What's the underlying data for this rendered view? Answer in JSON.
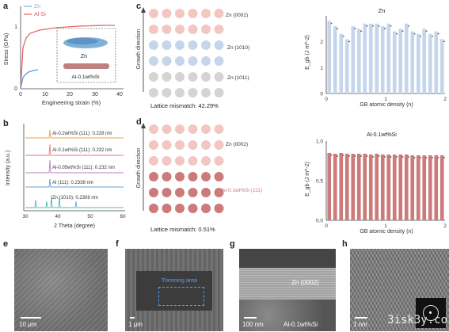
{
  "panel_letters": [
    "a",
    "b",
    "c",
    "d",
    "e",
    "f",
    "g",
    "h"
  ],
  "panel_a": {
    "legend": [
      "Zn",
      "Al-Si"
    ],
    "ylabel": "Stress (GPa)",
    "xlabel": "Engineering strain (%)",
    "yticks": [
      "0",
      "1"
    ],
    "xticks": [
      "0",
      "10",
      "20",
      "30",
      "40"
    ],
    "inset_labels": [
      "Zn",
      "Al-0.1wt%Si"
    ]
  },
  "panel_b": {
    "ylabel": "Intensity (a.u.)",
    "xlabel": "2 Theta (degree)",
    "xticks": [
      "30",
      "40",
      "50",
      "60"
    ],
    "annotations": [
      "Al-0.2wt%Si (111): 0.228 nm",
      "Al-0.1wt%Si (111): 0.232 nm",
      "Al-0.05wt%Si (111): 0.232 nm",
      "Al (111): 0.2338 nm",
      "Zn (1010): 0.2308 nm"
    ]
  },
  "panel_c": {
    "axis_label": "Growth direction",
    "row_labels": [
      "Zn (0002)",
      "Zn (1010)",
      "Zn (1011)"
    ],
    "mismatch": "Lattice mismatch: 42.29%"
  },
  "panel_d": {
    "axis_label": "Growth direction",
    "row_labels": [
      "Zn (0002)",
      "Al-0.1wt%Si (111)"
    ],
    "mismatch": "Lattice mismatch: 0.51%"
  },
  "panel_e": {
    "scale": "10 μm"
  },
  "panel_f": {
    "scale": "1 μm",
    "box_label": "Trimming area"
  },
  "panel_g": {
    "scale": "100 nm",
    "labels": [
      "Zn (0002)",
      "Al-0.1wt%Si"
    ]
  },
  "panel_h": {
    "scale": "1 nm"
  },
  "watermark": "3isk3y.co",
  "colors": {
    "blue": "#c5d6ec",
    "red": "#cc7a7a",
    "pink": "#f2c7c2",
    "grey": "#d4d4d4"
  },
  "chart_data": [
    {
      "type": "bar",
      "title": "Zn",
      "xlabel": "GB atomic density (n)",
      "ylabel": "E_gb (J m^-2)",
      "ylim": [
        0,
        3
      ],
      "yticks": [
        "0",
        "1",
        "2"
      ],
      "xticks": [
        "0",
        "1",
        "2"
      ],
      "xlim": [
        0,
        2
      ],
      "x": [
        0,
        0.1,
        0.2,
        0.3,
        0.4,
        0.5,
        0.6,
        0.7,
        0.8,
        0.9,
        1.0,
        1.1,
        1.2,
        1.3,
        1.4,
        1.5,
        1.6,
        1.7,
        1.8,
        1.9
      ],
      "values": [
        2.8,
        2.6,
        2.3,
        2.1,
        2.6,
        2.5,
        2.7,
        2.7,
        2.7,
        2.6,
        2.7,
        2.4,
        2.5,
        2.7,
        2.4,
        2.3,
        2.5,
        2.3,
        2.4,
        2.1
      ],
      "color": "#c5d6ec"
    },
    {
      "type": "bar",
      "title": "Al-0.1wt%Si",
      "xlabel": "GB atomic density (n)",
      "ylabel": "E_gb (J m^-2)",
      "ylim": [
        0,
        1
      ],
      "yticks": [
        "0.0",
        "0.5",
        "1.0"
      ],
      "xticks": [
        "0",
        "1",
        "2"
      ],
      "xlim": [
        0,
        2
      ],
      "x": [
        0,
        0.1,
        0.2,
        0.3,
        0.4,
        0.5,
        0.6,
        0.7,
        0.8,
        0.9,
        1.0,
        1.1,
        1.2,
        1.3,
        1.4,
        1.5,
        1.6,
        1.7,
        1.8,
        1.9
      ],
      "values": [
        0.85,
        0.84,
        0.85,
        0.84,
        0.84,
        0.84,
        0.84,
        0.83,
        0.84,
        0.83,
        0.83,
        0.83,
        0.83,
        0.83,
        0.82,
        0.82,
        0.82,
        0.82,
        0.82,
        0.82
      ],
      "color": "#cc7a7a"
    }
  ]
}
